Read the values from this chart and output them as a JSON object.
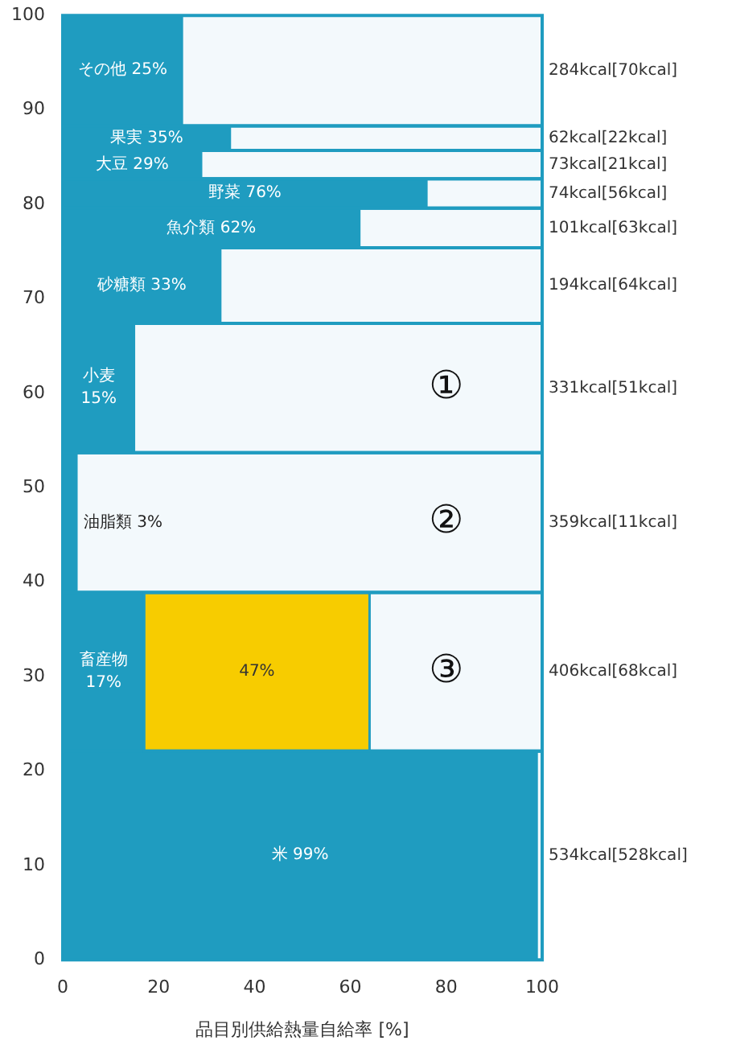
{
  "chart_data": {
    "type": "bar",
    "orientation": "horizontal",
    "stacked": true,
    "xlabel": "品目別供給熱量自給率 [%]",
    "x": [
      94.2,
      87.0,
      84.2,
      81.2,
      77.5,
      71.4,
      60.6,
      46.3,
      30.5,
      11.1
    ],
    "series": [
      {
        "color": "#1f9cc0",
        "values": [
          25,
          35,
          29,
          76,
          62,
          33,
          15,
          3,
          17,
          99
        ],
        "value_labels": [
          "その他 25%",
          "果実 35%",
          "大豆 29%",
          "野菜 76%",
          "魚介類 62%",
          "砂糖類 33%",
          "小麦 15%",
          "油脂類 3%",
          "畜産物 17%",
          "米 99%"
        ]
      },
      {
        "color": "#f7cc00",
        "values": [
          null,
          null,
          null,
          null,
          null,
          null,
          null,
          null,
          47,
          null
        ],
        "value_labels": [
          null,
          null,
          null,
          null,
          null,
          null,
          null,
          null,
          "47%",
          null
        ]
      }
    ],
    "xlim": [
      0,
      100
    ],
    "xticks": [
      0,
      20,
      40,
      60,
      80,
      100
    ],
    "ylim": [
      0,
      100
    ],
    "yticks": [
      0,
      10,
      20,
      30,
      40,
      50,
      60,
      70,
      80,
      90,
      100
    ],
    "bands": [
      {
        "axis": "y",
        "from": 88.3,
        "to": 100,
        "label": "284kcal[70kcal]",
        "color": "#f3f9fc"
      },
      {
        "axis": "y",
        "from": 85.7,
        "to": 88.3,
        "label": "62kcal[22kcal]",
        "color": "#f3f9fc"
      },
      {
        "axis": "y",
        "from": 82.7,
        "to": 85.7,
        "label": "73kcal[21kcal]",
        "color": "#f3f9fc"
      },
      {
        "axis": "y",
        "from": 79.6,
        "to": 82.7,
        "label": "74kcal[56kcal]",
        "color": "#f3f9fc"
      },
      {
        "axis": "y",
        "from": 75.4,
        "to": 79.6,
        "label": "101kcal[63kcal]",
        "color": "#f3f9fc"
      },
      {
        "axis": "y",
        "from": 67.4,
        "to": 75.4,
        "label": "194kcal[64kcal]",
        "color": "#f3f9fc"
      },
      {
        "axis": "y",
        "from": 53.7,
        "to": 67.4,
        "label": "331kcal[51kcal]",
        "color": "#f3f9fc"
      },
      {
        "axis": "y",
        "from": 38.9,
        "to": 53.7,
        "label": "359kcal[11kcal]",
        "color": "#f3f9fc"
      },
      {
        "axis": "y",
        "from": 22.1,
        "to": 38.9,
        "label": "406kcal[68kcal]",
        "color": "#f3f9fc"
      },
      {
        "axis": "y",
        "from": 0,
        "to": 22.1,
        "label": "534kcal[528kcal]",
        "color": "#f3f9fc"
      }
    ],
    "annotations": [
      "①",
      "②",
      "③"
    ]
  }
}
